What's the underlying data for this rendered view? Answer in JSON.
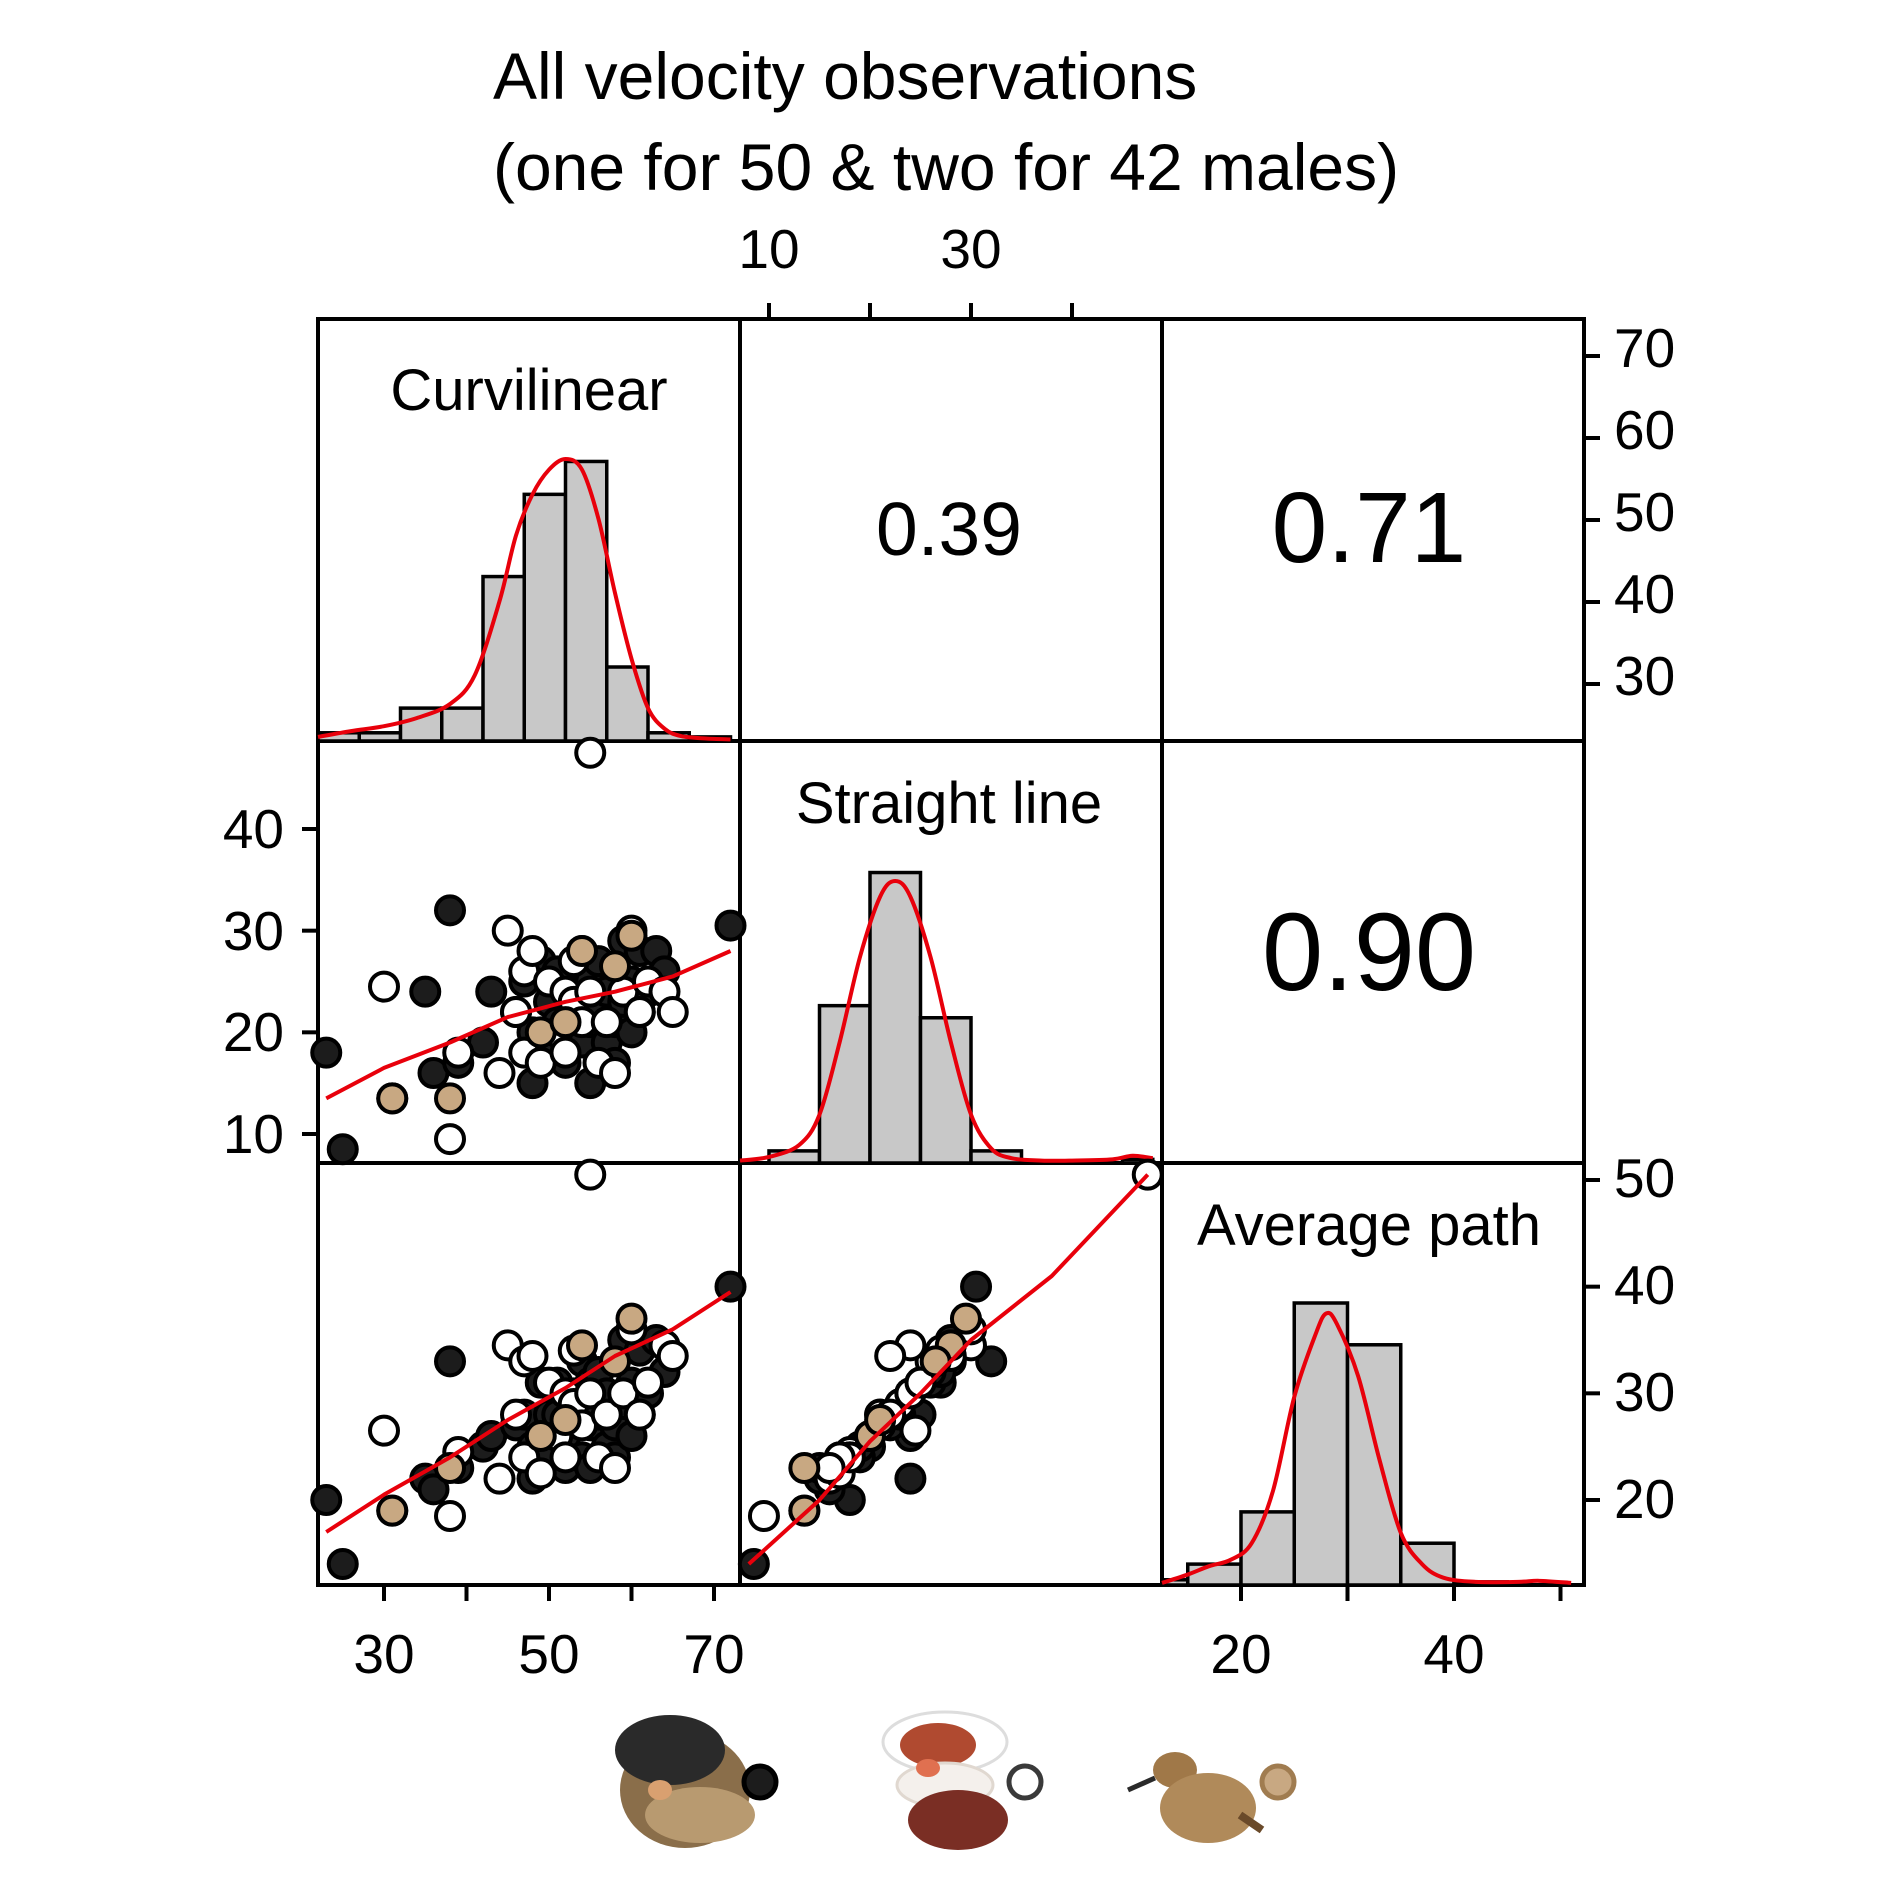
{
  "chart_data": {
    "type": "scatter",
    "title_lines": [
      "All velocity observations",
      "(one for 50 & two for 42 males)"
    ],
    "variables": [
      "Curvilinear",
      "Straight line",
      "Average path"
    ],
    "correlations": [
      {
        "row": 1,
        "col": 2,
        "label": "0.39",
        "value": 0.39
      },
      {
        "row": 1,
        "col": 3,
        "label": "0.71",
        "value": 0.71
      },
      {
        "row": 2,
        "col": 3,
        "label": "0.90",
        "value": 0.9
      }
    ],
    "axes": {
      "curvilinear": {
        "range": [
          22,
          73
        ],
        "ticks": [
          30,
          40,
          50,
          60,
          70
        ],
        "labels_bottom": [
          "30",
          "50",
          "70"
        ],
        "labels_right": [
          "30",
          "40",
          "50",
          "60",
          "70"
        ]
      },
      "straight_line": {
        "range": [
          7,
          48
        ],
        "ticks": [
          10,
          20,
          30,
          40
        ],
        "labels_top": [
          "10",
          "30"
        ],
        "labels_left": [
          "10",
          "20",
          "30",
          "40"
        ]
      },
      "average_path": {
        "range": [
          12,
          51
        ],
        "ticks": [
          20,
          30,
          40,
          50
        ],
        "labels_bottom": [
          "20",
          "40"
        ],
        "labels_right": [
          "20",
          "30",
          "40",
          "50"
        ]
      }
    },
    "histograms": {
      "curvilinear": {
        "bins": [
          [
            22,
            27,
            1
          ],
          [
            27,
            32,
            1
          ],
          [
            32,
            37,
            4
          ],
          [
            37,
            42,
            4
          ],
          [
            42,
            47,
            20
          ],
          [
            47,
            52,
            30
          ],
          [
            52,
            57,
            34
          ],
          [
            57,
            62,
            9
          ],
          [
            62,
            67,
            1
          ],
          [
            67,
            72,
            0.5
          ]
        ],
        "density": [
          [
            22,
            0.5
          ],
          [
            26,
            1.2
          ],
          [
            30,
            1.8
          ],
          [
            34,
            2.8
          ],
          [
            38,
            4.5
          ],
          [
            41,
            8
          ],
          [
            44,
            17
          ],
          [
            46,
            25
          ],
          [
            48,
            30
          ],
          [
            50,
            33
          ],
          [
            52,
            34.3
          ],
          [
            54,
            33
          ],
          [
            56,
            27
          ],
          [
            58,
            18
          ],
          [
            60,
            10
          ],
          [
            62,
            4
          ],
          [
            64,
            1.5
          ],
          [
            66,
            0.6
          ],
          [
            69,
            0.3
          ],
          [
            72,
            0.2
          ]
        ]
      },
      "straight_line": {
        "bins": [
          [
            10,
            15,
            1
          ],
          [
            15,
            20,
            13
          ],
          [
            20,
            25,
            24
          ],
          [
            25,
            30,
            12
          ],
          [
            30,
            35,
            1
          ],
          [
            45,
            48,
            0.3
          ]
        ],
        "density": [
          [
            7,
            0.2
          ],
          [
            10,
            0.5
          ],
          [
            13,
            1.5
          ],
          [
            15,
            4
          ],
          [
            17,
            10
          ],
          [
            19,
            17
          ],
          [
            21,
            22
          ],
          [
            22.5,
            23.3
          ],
          [
            24,
            22
          ],
          [
            26,
            17
          ],
          [
            28,
            10
          ],
          [
            30,
            4
          ],
          [
            32,
            1.2
          ],
          [
            34,
            0.4
          ],
          [
            37,
            0.2
          ],
          [
            40,
            0.2
          ],
          [
            44,
            0.3
          ],
          [
            46,
            0.6
          ],
          [
            48,
            0.4
          ]
        ]
      },
      "average_path": {
        "bins": [
          [
            12,
            15,
            0.5
          ],
          [
            15,
            20,
            2
          ],
          [
            20,
            25,
            7
          ],
          [
            25,
            30,
            27
          ],
          [
            30,
            35,
            23
          ],
          [
            35,
            40,
            4
          ],
          [
            40,
            45,
            0.3
          ]
        ],
        "density": [
          [
            12,
            0.2
          ],
          [
            15,
            1
          ],
          [
            17,
            1.8
          ],
          [
            19,
            2.4
          ],
          [
            21,
            4
          ],
          [
            23,
            9
          ],
          [
            25,
            18
          ],
          [
            27,
            24
          ],
          [
            28,
            26
          ],
          [
            29,
            25
          ],
          [
            31,
            20
          ],
          [
            33,
            12
          ],
          [
            35,
            5
          ],
          [
            37,
            2
          ],
          [
            39,
            0.7
          ],
          [
            42,
            0.3
          ],
          [
            46,
            0.3
          ],
          [
            48,
            0.4
          ],
          [
            51,
            0.2
          ]
        ]
      }
    },
    "loess": {
      "straight_vs_curvilinear": [
        [
          23,
          13.5
        ],
        [
          30,
          16.5
        ],
        [
          38,
          19
        ],
        [
          45,
          21.5
        ],
        [
          52,
          23
        ],
        [
          58,
          24
        ],
        [
          65,
          25.5
        ],
        [
          72,
          28
        ]
      ],
      "average_vs_curvilinear": [
        [
          23,
          17
        ],
        [
          30,
          20.5
        ],
        [
          38,
          24
        ],
        [
          45,
          27.5
        ],
        [
          52,
          30.5
        ],
        [
          58,
          33.5
        ],
        [
          65,
          36
        ],
        [
          72,
          39.5
        ]
      ],
      "average_vs_straight": [
        [
          8,
          14
        ],
        [
          15,
          20
        ],
        [
          20,
          25.5
        ],
        [
          25,
          30
        ],
        [
          30,
          35
        ],
        [
          38,
          41
        ],
        [
          47.5,
          50.5
        ]
      ]
    },
    "series": [
      {
        "name": "filled",
        "fill": "#1c1c1c",
        "points": [
          [
            23,
            18
          ],
          [
            25,
            8.5
          ],
          [
            35,
            24
          ],
          [
            36,
            16
          ],
          [
            38,
            32
          ],
          [
            39,
            17
          ],
          [
            42,
            19
          ],
          [
            43,
            24
          ],
          [
            46,
            22
          ],
          [
            47,
            25
          ],
          [
            48,
            20
          ],
          [
            48,
            15
          ],
          [
            49,
            27
          ],
          [
            50,
            23
          ],
          [
            50,
            18
          ],
          [
            51,
            21
          ],
          [
            51,
            26
          ],
          [
            52,
            20
          ],
          [
            52,
            17
          ],
          [
            53,
            22
          ],
          [
            53,
            24
          ],
          [
            54,
            28
          ],
          [
            54,
            19
          ],
          [
            55,
            21
          ],
          [
            55,
            25
          ],
          [
            55,
            15
          ],
          [
            56,
            22
          ],
          [
            56,
            27
          ],
          [
            57,
            19
          ],
          [
            57,
            24
          ],
          [
            58,
            21
          ],
          [
            58,
            17
          ],
          [
            59,
            29
          ],
          [
            59,
            23
          ],
          [
            60,
            20
          ],
          [
            60,
            25
          ],
          [
            61,
            28
          ],
          [
            61,
            22
          ],
          [
            62,
            24
          ],
          [
            63,
            28
          ],
          [
            64,
            26
          ],
          [
            72,
            30.5
          ]
        ],
        "avg_points": [
          [
            23,
            20
          ],
          [
            25,
            14
          ],
          [
            35,
            22
          ],
          [
            36,
            21
          ],
          [
            38,
            33
          ],
          [
            39,
            23
          ],
          [
            42,
            25
          ],
          [
            43,
            26
          ],
          [
            46,
            27
          ],
          [
            47,
            28
          ],
          [
            48,
            25
          ],
          [
            48,
            22
          ],
          [
            49,
            31
          ],
          [
            50,
            28
          ],
          [
            50,
            24
          ],
          [
            51,
            28
          ],
          [
            51,
            31
          ],
          [
            52,
            26
          ],
          [
            52,
            23
          ],
          [
            53,
            28
          ],
          [
            53,
            30
          ],
          [
            54,
            33
          ],
          [
            54,
            24
          ],
          [
            55,
            27
          ],
          [
            55,
            31
          ],
          [
            55,
            23
          ],
          [
            56,
            28
          ],
          [
            56,
            32
          ],
          [
            57,
            25
          ],
          [
            57,
            30
          ],
          [
            58,
            27
          ],
          [
            58,
            24
          ],
          [
            59,
            35
          ],
          [
            59,
            29
          ],
          [
            60,
            26
          ],
          [
            60,
            31
          ],
          [
            61,
            34
          ],
          [
            61,
            28
          ],
          [
            62,
            30
          ],
          [
            63,
            35
          ],
          [
            64,
            32
          ],
          [
            72,
            40
          ]
        ]
      },
      {
        "name": "open",
        "fill": "#ffffff",
        "points": [
          [
            30,
            24.5
          ],
          [
            31,
            13.5
          ],
          [
            38,
            9.5
          ],
          [
            39,
            18
          ],
          [
            44,
            16
          ],
          [
            45,
            30
          ],
          [
            46,
            22
          ],
          [
            47,
            26
          ],
          [
            47,
            18
          ],
          [
            48,
            28
          ],
          [
            49,
            17
          ],
          [
            50,
            25
          ],
          [
            51,
            20
          ],
          [
            52,
            24
          ],
          [
            52,
            18
          ],
          [
            53,
            27
          ],
          [
            53,
            23
          ],
          [
            54,
            21
          ],
          [
            55,
            47.5
          ],
          [
            55,
            24
          ],
          [
            56,
            17
          ],
          [
            57,
            21
          ],
          [
            58,
            16
          ],
          [
            59,
            24
          ],
          [
            60,
            30
          ],
          [
            61,
            22
          ],
          [
            62,
            25
          ],
          [
            64,
            24
          ],
          [
            65,
            22
          ]
        ],
        "avg_points": [
          [
            30,
            26.5
          ],
          [
            31,
            19
          ],
          [
            38,
            18.5
          ],
          [
            39,
            24.5
          ],
          [
            44,
            22
          ],
          [
            45,
            34.5
          ],
          [
            46,
            28
          ],
          [
            47,
            33
          ],
          [
            47,
            24
          ],
          [
            48,
            33.5
          ],
          [
            49,
            22.5
          ],
          [
            50,
            31
          ],
          [
            51,
            26
          ],
          [
            52,
            30
          ],
          [
            52,
            24
          ],
          [
            53,
            34
          ],
          [
            53,
            29
          ],
          [
            54,
            27
          ],
          [
            55,
            50.5
          ],
          [
            55,
            30
          ],
          [
            56,
            24
          ],
          [
            57,
            28
          ],
          [
            58,
            23
          ],
          [
            59,
            30
          ],
          [
            60,
            36
          ],
          [
            61,
            28
          ],
          [
            62,
            31
          ],
          [
            64,
            34.5
          ],
          [
            65,
            33.5
          ]
        ]
      },
      {
        "name": "tan",
        "fill": "#c8a882",
        "points": [
          [
            31,
            13.5
          ],
          [
            38,
            13.5
          ],
          [
            49,
            20
          ],
          [
            52,
            21
          ],
          [
            54,
            28
          ],
          [
            58,
            26.5
          ],
          [
            60,
            29.5
          ]
        ],
        "avg_points": [
          [
            31,
            19
          ],
          [
            38,
            23
          ],
          [
            49,
            26
          ],
          [
            52,
            27.5
          ],
          [
            54,
            34.5
          ],
          [
            58,
            33
          ],
          [
            60,
            37
          ]
        ]
      }
    ]
  }
}
